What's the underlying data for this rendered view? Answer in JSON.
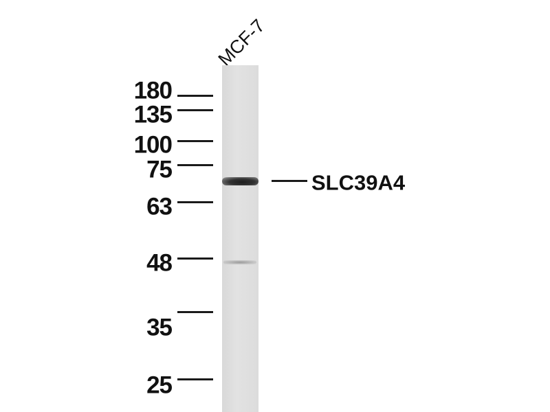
{
  "lane_label": "MCF-7",
  "target_label": "SLC39A4",
  "markers": [
    "180",
    "135",
    "100",
    "75",
    "63",
    "48",
    "35",
    "25"
  ]
}
